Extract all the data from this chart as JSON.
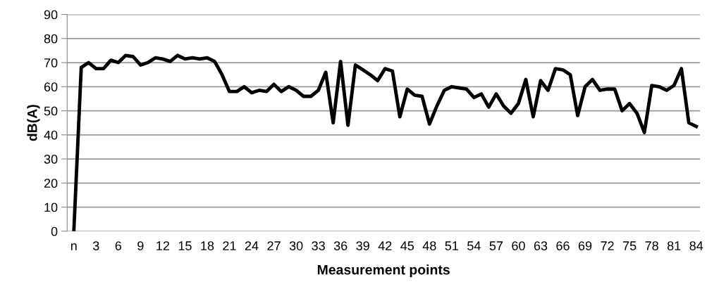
{
  "chart_data": {
    "type": "line",
    "xlabel": "Measurement points",
    "ylabel": "dB(A)",
    "categories": [
      "n",
      null,
      null,
      "3",
      null,
      null,
      "6",
      null,
      null,
      "9",
      null,
      null,
      "12",
      null,
      null,
      "15",
      null,
      null,
      "18",
      null,
      null,
      "21",
      null,
      null,
      "24",
      null,
      null,
      "27",
      null,
      null,
      "30",
      null,
      null,
      "33",
      null,
      null,
      "36",
      null,
      null,
      "39",
      null,
      null,
      "42",
      null,
      null,
      "45",
      null,
      null,
      "48",
      null,
      null,
      "51",
      null,
      null,
      "54",
      null,
      null,
      "57",
      null,
      null,
      "60",
      null,
      null,
      "63",
      null,
      null,
      "66",
      null,
      null,
      "69",
      null,
      null,
      "72",
      null,
      null,
      "75",
      null,
      null,
      "78",
      null,
      null,
      "81",
      null,
      null,
      "84"
    ],
    "series": [
      {
        "color": "#000000",
        "values": [
          0,
          68,
          70,
          67.5,
          67.5,
          71,
          70,
          73,
          72.5,
          69,
          70,
          72,
          71.5,
          70.5,
          73,
          71.5,
          72,
          71.5,
          72,
          70.5,
          65,
          58,
          58,
          60,
          57.5,
          58.5,
          58,
          61,
          58,
          60,
          58.5,
          56,
          56,
          58.5,
          66,
          45,
          70.5,
          44,
          69,
          67,
          65,
          62.5,
          67.5,
          66.5,
          47.5,
          59,
          56.5,
          56,
          44.5,
          52,
          58.5,
          60,
          59.5,
          59,
          55.5,
          57,
          51.5,
          57,
          52,
          49,
          53,
          63,
          47.5,
          62.5,
          58.5,
          67.5,
          67,
          65,
          48,
          60,
          63,
          58.5,
          59,
          59,
          50,
          53,
          49,
          41,
          60.5,
          60,
          58.5,
          60.5,
          67.5,
          45,
          43.5
        ]
      }
    ],
    "ylim": [
      0,
      90
    ],
    "yticks": [
      0,
      10,
      20,
      30,
      40,
      50,
      60,
      70,
      80,
      90
    ],
    "grid": "y",
    "marker": "none",
    "line_style": "solid"
  }
}
